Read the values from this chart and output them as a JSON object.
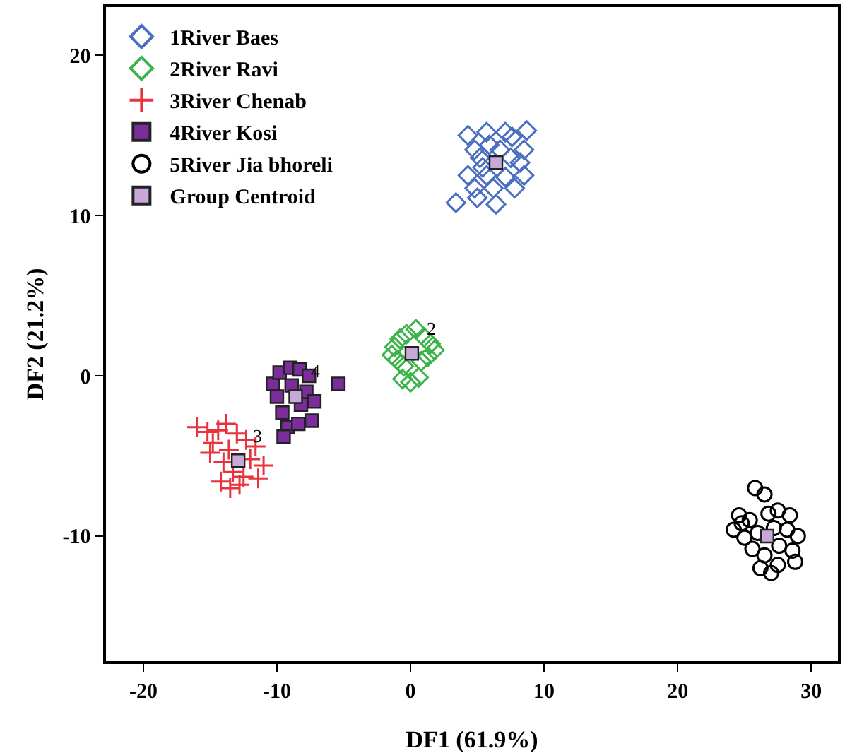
{
  "chart_data": {
    "type": "scatter",
    "xlabel": "DF1 (61.9%)",
    "ylabel": "DF2 (21.2%)",
    "xlim": [
      -22.8,
      32
    ],
    "ylim": [
      -17.8,
      23
    ],
    "xticks": [
      -20,
      -10,
      0,
      10,
      20,
      30
    ],
    "yticks": [
      -10,
      0,
      10,
      20
    ],
    "grid": false,
    "legend": "top left",
    "series": [
      {
        "name": "1River Baes",
        "color": "#4a6fc0",
        "marker": "diamond",
        "x": [
          4.3,
          5.7,
          7.1,
          8.7,
          8.5,
          7.6,
          4.8,
          5.2,
          8.2,
          4.3,
          5.7,
          7.1,
          8.5,
          4.8,
          6.2,
          7.8,
          3.4,
          5.0,
          6.4,
          5.9,
          6.7,
          7.5,
          5.4
        ],
        "values": [
          15.0,
          15.2,
          15.2,
          15.3,
          14.1,
          14.9,
          14.1,
          13.6,
          13.3,
          12.5,
          12.5,
          12.4,
          12.5,
          11.7,
          11.7,
          11.7,
          10.8,
          11.1,
          10.7,
          14.4,
          14.1,
          13.6,
          13.0
        ]
      },
      {
        "name": "2River Ravi",
        "color": "#3cb44b",
        "marker": "diamond",
        "x": [
          -1.2,
          -0.8,
          -0.3,
          0.4,
          1.0,
          1.5,
          -1.0,
          -0.5,
          0.8,
          1.3,
          -0.6,
          0.0,
          0.6,
          1.8,
          -1.4
        ],
        "values": [
          1.8,
          2.3,
          2.6,
          2.9,
          2.4,
          2.0,
          1.0,
          0.6,
          0.9,
          1.2,
          -0.2,
          -0.4,
          -0.1,
          1.6,
          1.3
        ]
      },
      {
        "name": "3River Chenab",
        "color": "#e8333c",
        "marker": "cross",
        "x": [
          -16.0,
          -15.2,
          -14.4,
          -13.8,
          -13.0,
          -14.8,
          -12.3,
          -11.6,
          -13.6,
          -14.0,
          -12.0,
          -11.0,
          -13.3,
          -12.5,
          -11.4,
          -14.2,
          -13.5,
          -12.8,
          -15.0
        ],
        "values": [
          -3.2,
          -3.5,
          -3.4,
          -3.0,
          -3.6,
          -4.2,
          -4.0,
          -4.4,
          -4.6,
          -5.4,
          -5.2,
          -5.6,
          -6.0,
          -6.3,
          -6.4,
          -6.6,
          -7.0,
          -6.8,
          -4.8
        ]
      },
      {
        "name": "4River Kosi",
        "color": "#7b2d9b",
        "marker": "square",
        "x": [
          -10.3,
          -9.8,
          -9.0,
          -8.3,
          -7.6,
          -10.0,
          -7.8,
          -7.2,
          -9.6,
          -7.4,
          -9.2,
          -9.5,
          -8.4,
          -8.9,
          -8.2,
          -5.4
        ],
        "values": [
          -0.5,
          0.2,
          0.5,
          0.4,
          0.0,
          -1.3,
          -1.0,
          -1.6,
          -2.3,
          -2.8,
          -3.2,
          -3.8,
          -3.0,
          -0.6,
          -1.8,
          -0.5
        ]
      },
      {
        "name": "5River Jia bhoreli",
        "color": "#000000",
        "marker": "circle",
        "x": [
          25.8,
          26.5,
          24.6,
          25.4,
          26.8,
          27.5,
          28.4,
          24.2,
          25.0,
          26.0,
          27.2,
          28.2,
          29.0,
          25.6,
          26.5,
          27.6,
          28.6,
          26.2,
          27.0,
          27.5,
          28.8,
          24.8
        ],
        "values": [
          -7.0,
          -7.4,
          -8.7,
          -9.0,
          -8.6,
          -8.4,
          -8.7,
          -9.6,
          -10.1,
          -9.8,
          -9.5,
          -9.6,
          -10.0,
          -10.8,
          -11.2,
          -10.6,
          -10.9,
          -12.0,
          -12.3,
          -11.8,
          -11.6,
          -9.2
        ]
      },
      {
        "name": "Group Centroid",
        "color": "#c8a8d8",
        "marker": "square",
        "x": [
          6.4,
          0.1,
          -12.9,
          -8.6,
          26.7
        ],
        "values": [
          13.3,
          1.4,
          -5.3,
          -1.3,
          -10.0
        ]
      }
    ],
    "annotations": [
      {
        "text": "2",
        "x": 0.1,
        "y": 1.4
      },
      {
        "text": "3",
        "x": -12.9,
        "y": -5.3
      },
      {
        "text": "4",
        "x": -8.6,
        "y": -1.3
      }
    ]
  }
}
